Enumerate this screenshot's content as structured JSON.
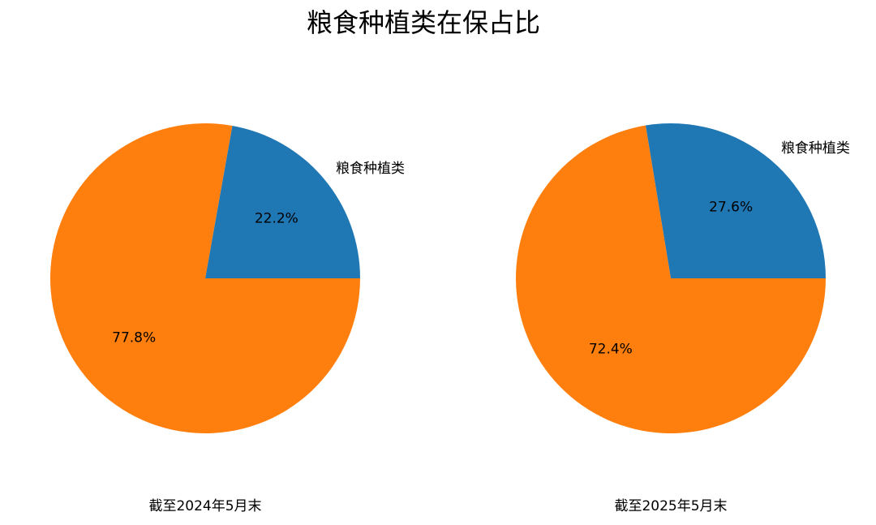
{
  "title": "粮食种植类在保占比",
  "chart_data": [
    {
      "type": "pie",
      "categories": [
        "粮食种植类",
        null
      ],
      "values": [
        22.2,
        77.8
      ],
      "value_labels": [
        "22.2%",
        "77.8%"
      ],
      "colors": [
        "#1f77b4",
        "#ff7f0e"
      ],
      "xlabel": "截至2024年5月末"
    },
    {
      "type": "pie",
      "categories": [
        "粮食种植类",
        null
      ],
      "values": [
        27.6,
        72.4
      ],
      "value_labels": [
        "27.6%",
        "72.4%"
      ],
      "colors": [
        "#1f77b4",
        "#ff7f0e"
      ],
      "xlabel": "截至2025年5月末"
    }
  ]
}
